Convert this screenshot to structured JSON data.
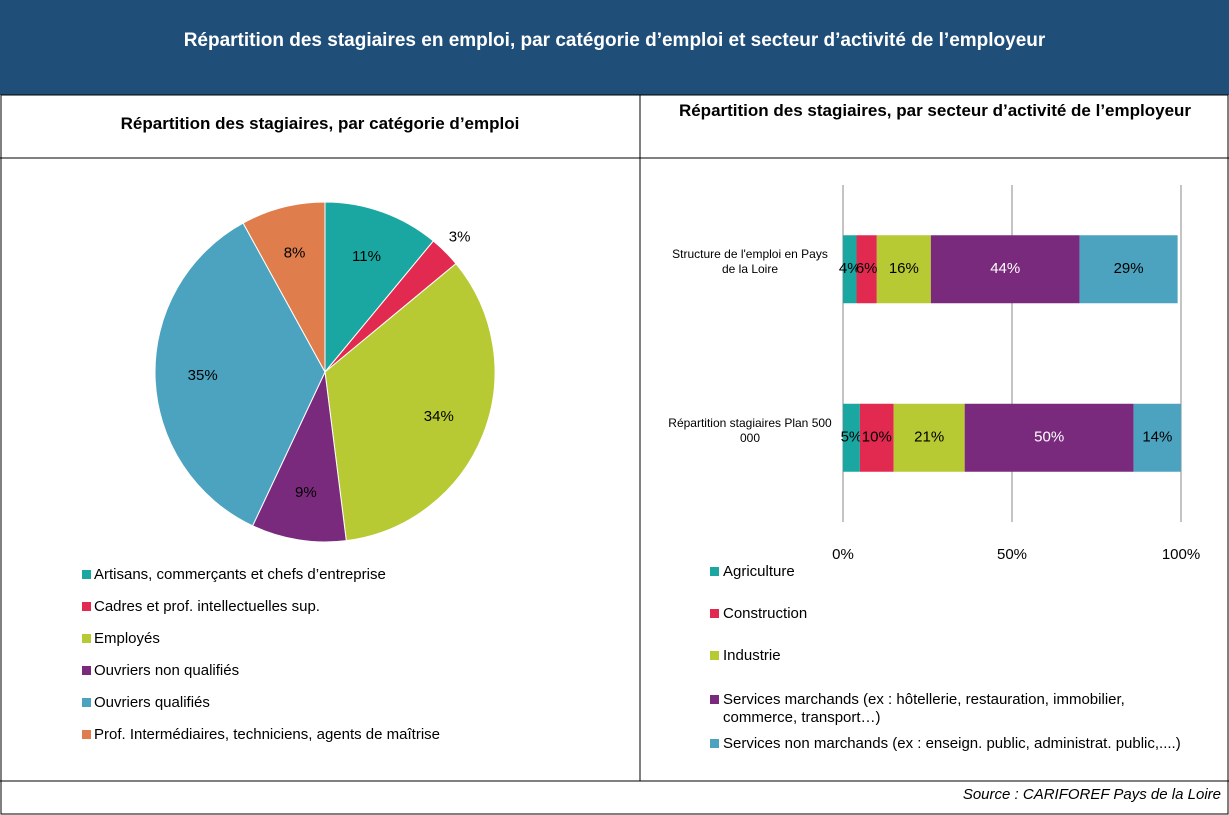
{
  "title": "Répartition des stagiaires en emploi, par catégorie d’emploi et secteur d’activité de l’employeur",
  "source": "Source : CARIFOREF Pays de la Loire",
  "chart_data": [
    {
      "type": "pie",
      "title": "Répartition des stagiaires, par catégorie d’emploi",
      "categories": [
        "Artisans, commerçants et chefs d’entreprise",
        "Cadres et prof. intellectuelles sup.",
        "Employés",
        "Ouvriers non qualifiés",
        "Ouvriers qualifiés",
        "Prof. Intermédiaires, techniciens, agents de maîtrise"
      ],
      "values": [
        11,
        3,
        34,
        9,
        35,
        8
      ],
      "value_labels": [
        "11%",
        "3%",
        "34%",
        "9%",
        "35%",
        "8%"
      ],
      "colors": [
        "#1aa7a1",
        "#e2294f",
        "#b7c933",
        "#7a2a7d",
        "#4ba3bf",
        "#e07d4c"
      ]
    },
    {
      "type": "bar",
      "orientation": "horizontal",
      "stacked": true,
      "title": "Répartition des stagiaires, par secteur d’activité de l’employeur",
      "categories": [
        "Structure de l'emploi en Pays de la Loire",
        "Répartition stagiaires Plan 500 000"
      ],
      "series": [
        {
          "name": "Agriculture",
          "color": "#1aa7a1",
          "values": [
            4,
            5
          ],
          "value_labels": [
            "4%",
            "5%"
          ]
        },
        {
          "name": "Construction",
          "color": "#e2294f",
          "values": [
            6,
            10
          ],
          "value_labels": [
            "6%",
            "10%"
          ]
        },
        {
          "name": "Industrie",
          "color": "#b7c933",
          "values": [
            16,
            21
          ],
          "value_labels": [
            "16%",
            "21%"
          ]
        },
        {
          "name": "Services marchands (ex : hôtellerie, restauration, immobilier, commerce, transport…)",
          "color": "#7a2a7d",
          "values": [
            44,
            50
          ],
          "value_labels": [
            "44%",
            "50%"
          ]
        },
        {
          "name": "Services non marchands (ex : enseign. public, administrat. public,....)",
          "color": "#4ba3bf",
          "values": [
            29,
            14
          ],
          "value_labels": [
            "29%",
            "14%"
          ]
        }
      ],
      "xlim": [
        0,
        100
      ],
      "xticks": [
        {
          "value": 0,
          "label": "0%"
        },
        {
          "value": 50,
          "label": "50%"
        },
        {
          "value": 100,
          "label": "100%"
        }
      ],
      "grid": true
    }
  ]
}
